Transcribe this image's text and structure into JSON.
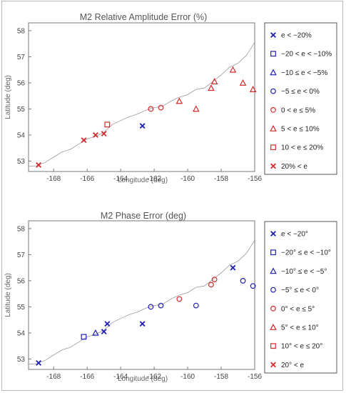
{
  "chart_data": [
    {
      "type": "scatter",
      "title": "M2 Relative Amplitude Error (%)",
      "xlabel": "Longitude (deg)",
      "ylabel": "Latitude (deg)",
      "xlim": [
        -169.5,
        -156
      ],
      "ylim": [
        52.6,
        58.3
      ],
      "xticks": [
        "-168",
        "-166",
        "-164",
        "-162",
        "-160",
        "-158",
        "-156"
      ],
      "yticks": [
        "53",
        "54",
        "55",
        "56",
        "57",
        "58"
      ],
      "grid": false,
      "legend_position": "right",
      "legend": [
        {
          "label": "e < −20%",
          "marker": "x",
          "color": "#1f1fb4"
        },
        {
          "label": "−20 < e < −10%",
          "marker": "square",
          "color": "#1f1fb4"
        },
        {
          "label": "−10 ≤ e < −5%",
          "marker": "triangle",
          "color": "#1f1fb4"
        },
        {
          "label": "−5 ≤ e < 0%",
          "marker": "circle",
          "color": "#1f1fb4"
        },
        {
          "label": "0 < e ≤ 5%",
          "marker": "circle",
          "color": "#d42a2a"
        },
        {
          "label": "5 < e ≤ 10%",
          "marker": "triangle",
          "color": "#d42a2a"
        },
        {
          "label": "10 < e ≤ 20%",
          "marker": "square",
          "color": "#d42a2a"
        },
        {
          "label": "20% < e",
          "marker": "x",
          "color": "#d42a2a"
        }
      ],
      "points": [
        {
          "lon": -168.9,
          "lat": 52.85,
          "cls": 7
        },
        {
          "lon": -166.2,
          "lat": 53.8,
          "cls": 7
        },
        {
          "lon": -165.5,
          "lat": 54.0,
          "cls": 7
        },
        {
          "lon": -165.0,
          "lat": 54.05,
          "cls": 7
        },
        {
          "lon": -164.8,
          "lat": 54.4,
          "cls": 6
        },
        {
          "lon": -162.7,
          "lat": 54.35,
          "cls": 0
        },
        {
          "lon": -162.2,
          "lat": 55.0,
          "cls": 4
        },
        {
          "lon": -161.6,
          "lat": 55.05,
          "cls": 4
        },
        {
          "lon": -160.5,
          "lat": 55.3,
          "cls": 5
        },
        {
          "lon": -159.5,
          "lat": 55.0,
          "cls": 5
        },
        {
          "lon": -158.6,
          "lat": 55.8,
          "cls": 5
        },
        {
          "lon": -158.4,
          "lat": 56.05,
          "cls": 5
        },
        {
          "lon": -157.3,
          "lat": 56.5,
          "cls": 5
        },
        {
          "lon": -156.7,
          "lat": 56.0,
          "cls": 5
        },
        {
          "lon": -156.1,
          "lat": 55.75,
          "cls": 5
        }
      ]
    },
    {
      "type": "scatter",
      "title": "M2 Phase Error (deg)",
      "xlabel": "Longitude (deg)",
      "ylabel": "Latitude (deg)",
      "xlim": [
        -169.5,
        -156
      ],
      "ylim": [
        52.6,
        58.3
      ],
      "xticks": [
        "-168",
        "-166",
        "-164",
        "-162",
        "-160",
        "-158",
        "-156"
      ],
      "yticks": [
        "53",
        "54",
        "55",
        "56",
        "57",
        "58"
      ],
      "grid": false,
      "legend_position": "right",
      "legend": [
        {
          "label": "e < −20°",
          "marker": "x",
          "color": "#1f1fb4"
        },
        {
          "label": "−20° ≤ e < −10°",
          "marker": "square",
          "color": "#1f1fb4"
        },
        {
          "label": "−10° ≤ e < −5°",
          "marker": "triangle",
          "color": "#1f1fb4"
        },
        {
          "label": "−5° ≤ e < 0°",
          "marker": "circle",
          "color": "#1f1fb4"
        },
        {
          "label": "0° < e ≤ 5°",
          "marker": "circle",
          "color": "#d42a2a"
        },
        {
          "label": "5° < e ≤ 10°",
          "marker": "triangle",
          "color": "#d42a2a"
        },
        {
          "label": "10° < e ≤ 20°",
          "marker": "square",
          "color": "#d42a2a"
        },
        {
          "label": "20° < e",
          "marker": "x",
          "color": "#d42a2a"
        }
      ],
      "points": [
        {
          "lon": -168.9,
          "lat": 52.85,
          "cls": 0
        },
        {
          "lon": -166.2,
          "lat": 53.85,
          "cls": 1
        },
        {
          "lon": -165.5,
          "lat": 54.0,
          "cls": 2
        },
        {
          "lon": -165.0,
          "lat": 54.05,
          "cls": 0
        },
        {
          "lon": -164.8,
          "lat": 54.35,
          "cls": 0
        },
        {
          "lon": -162.7,
          "lat": 54.35,
          "cls": 0
        },
        {
          "lon": -162.2,
          "lat": 55.0,
          "cls": 3
        },
        {
          "lon": -161.6,
          "lat": 55.05,
          "cls": 3
        },
        {
          "lon": -160.5,
          "lat": 55.3,
          "cls": 4
        },
        {
          "lon": -159.5,
          "lat": 55.05,
          "cls": 3
        },
        {
          "lon": -158.6,
          "lat": 55.85,
          "cls": 4
        },
        {
          "lon": -158.4,
          "lat": 56.05,
          "cls": 4
        },
        {
          "lon": -157.3,
          "lat": 56.5,
          "cls": 0
        },
        {
          "lon": -156.7,
          "lat": 56.0,
          "cls": 3
        },
        {
          "lon": -156.1,
          "lat": 55.8,
          "cls": 3
        }
      ]
    }
  ],
  "coastline": [
    [
      -169.5,
      52.8
    ],
    [
      -169.0,
      52.82
    ],
    [
      -168.5,
      52.95
    ],
    [
      -168.0,
      53.15
    ],
    [
      -167.5,
      53.35
    ],
    [
      -167.0,
      53.45
    ],
    [
      -166.5,
      53.65
    ],
    [
      -166.0,
      53.85
    ],
    [
      -165.5,
      53.95
    ],
    [
      -165.0,
      54.1
    ],
    [
      -164.5,
      54.4
    ],
    [
      -164.0,
      54.55
    ],
    [
      -163.5,
      54.7
    ],
    [
      -163.0,
      54.8
    ],
    [
      -162.5,
      54.95
    ],
    [
      -162.0,
      55.05
    ],
    [
      -161.5,
      55.1
    ],
    [
      -161.0,
      55.3
    ],
    [
      -160.5,
      55.45
    ],
    [
      -160.0,
      55.55
    ],
    [
      -159.5,
      55.75
    ],
    [
      -159.0,
      55.8
    ],
    [
      -158.5,
      56.05
    ],
    [
      -158.0,
      56.3
    ],
    [
      -157.5,
      56.6
    ],
    [
      -157.0,
      56.75
    ],
    [
      -156.5,
      57.05
    ],
    [
      -156.2,
      57.35
    ],
    [
      -156.0,
      57.55
    ]
  ]
}
